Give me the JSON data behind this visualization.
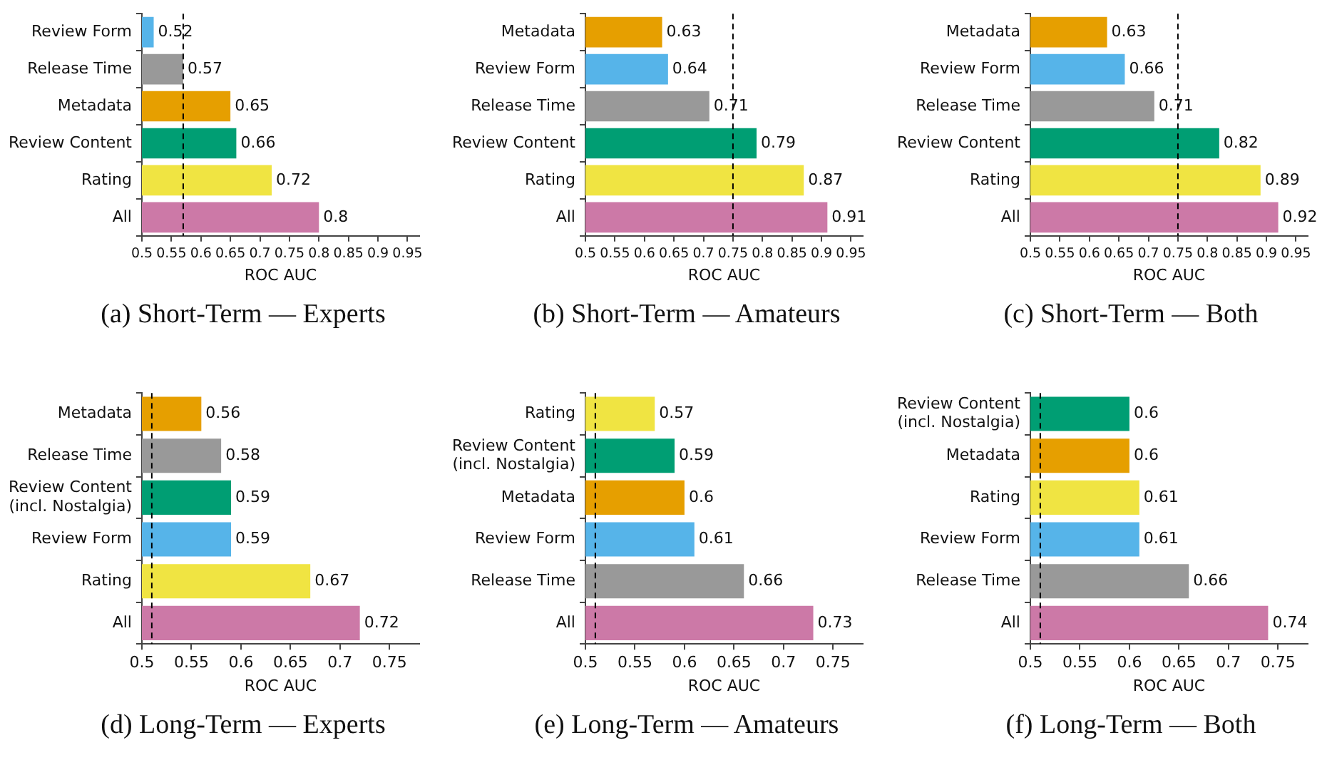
{
  "chart_data": [
    {
      "type": "bar",
      "orientation": "horizontal",
      "title": "(a) Short-Term — Experts",
      "xlabel": "ROC AUC",
      "categories": [
        "Review Form",
        "Release Time",
        "Metadata",
        "Review Content",
        "Rating",
        "All"
      ],
      "values": [
        0.52,
        0.57,
        0.65,
        0.66,
        0.72,
        0.8
      ],
      "colors": [
        "#56b4e9",
        "#999999",
        "#e69f00",
        "#009e73",
        "#f0e442",
        "#cc79a7"
      ],
      "xlim": [
        0.5,
        0.97
      ],
      "xticks": [
        0.5,
        0.55,
        0.6,
        0.65,
        0.7,
        0.75,
        0.8,
        0.85,
        0.9,
        0.95
      ],
      "data_labels": true,
      "grid": false,
      "legend": false,
      "ref_lines": [
        {
          "axis": "x",
          "value": 0.57,
          "color": "#000000",
          "line_style": "dashed"
        }
      ]
    },
    {
      "type": "bar",
      "orientation": "horizontal",
      "title": "(b) Short-Term — Amateurs",
      "xlabel": "ROC AUC",
      "categories": [
        "Metadata",
        "Review Form",
        "Release Time",
        "Review Content",
        "Rating",
        "All"
      ],
      "values": [
        0.63,
        0.64,
        0.71,
        0.79,
        0.87,
        0.91
      ],
      "colors": [
        "#e69f00",
        "#56b4e9",
        "#999999",
        "#009e73",
        "#f0e442",
        "#cc79a7"
      ],
      "xlim": [
        0.5,
        0.97
      ],
      "xticks": [
        0.5,
        0.55,
        0.6,
        0.65,
        0.7,
        0.75,
        0.8,
        0.85,
        0.9,
        0.95
      ],
      "data_labels": true,
      "grid": false,
      "legend": false,
      "ref_lines": [
        {
          "axis": "x",
          "value": 0.75,
          "color": "#000000",
          "line_style": "dashed"
        }
      ]
    },
    {
      "type": "bar",
      "orientation": "horizontal",
      "title": "(c) Short-Term — Both",
      "xlabel": "ROC AUC",
      "categories": [
        "Metadata",
        "Review Form",
        "Release Time",
        "Review Content",
        "Rating",
        "All"
      ],
      "values": [
        0.63,
        0.66,
        0.71,
        0.82,
        0.89,
        0.92
      ],
      "colors": [
        "#e69f00",
        "#56b4e9",
        "#999999",
        "#009e73",
        "#f0e442",
        "#cc79a7"
      ],
      "xlim": [
        0.5,
        0.97
      ],
      "xticks": [
        0.5,
        0.55,
        0.6,
        0.65,
        0.7,
        0.75,
        0.8,
        0.85,
        0.9,
        0.95
      ],
      "data_labels": true,
      "grid": false,
      "legend": false,
      "ref_lines": [
        {
          "axis": "x",
          "value": 0.75,
          "color": "#000000",
          "line_style": "dashed"
        }
      ]
    },
    {
      "type": "bar",
      "orientation": "horizontal",
      "title": "(d) Long-Term — Experts",
      "xlabel": "ROC AUC",
      "categories": [
        "Metadata",
        "Release Time",
        "Review Content\n(incl. Nostalgia)",
        "Review Form",
        "Rating",
        "All"
      ],
      "values": [
        0.56,
        0.58,
        0.59,
        0.59,
        0.67,
        0.72
      ],
      "colors": [
        "#e69f00",
        "#999999",
        "#009e73",
        "#56b4e9",
        "#f0e442",
        "#cc79a7"
      ],
      "xlim": [
        0.5,
        0.78
      ],
      "xticks": [
        0.5,
        0.55,
        0.6,
        0.65,
        0.7,
        0.75
      ],
      "data_labels": true,
      "grid": false,
      "legend": false,
      "ref_lines": [
        {
          "axis": "x",
          "value": 0.51,
          "color": "#000000",
          "line_style": "dashed"
        }
      ]
    },
    {
      "type": "bar",
      "orientation": "horizontal",
      "title": "(e) Long-Term — Amateurs",
      "xlabel": "ROC AUC",
      "categories": [
        "Rating",
        "Review Content\n(incl. Nostalgia)",
        "Metadata",
        "Review Form",
        "Release Time",
        "All"
      ],
      "values": [
        0.57,
        0.59,
        0.6,
        0.61,
        0.66,
        0.73
      ],
      "colors": [
        "#f0e442",
        "#009e73",
        "#e69f00",
        "#56b4e9",
        "#999999",
        "#cc79a7"
      ],
      "xlim": [
        0.5,
        0.78
      ],
      "xticks": [
        0.5,
        0.55,
        0.6,
        0.65,
        0.7,
        0.75
      ],
      "data_labels": true,
      "grid": false,
      "legend": false,
      "ref_lines": [
        {
          "axis": "x",
          "value": 0.51,
          "color": "#000000",
          "line_style": "dashed"
        }
      ]
    },
    {
      "type": "bar",
      "orientation": "horizontal",
      "title": "(f) Long-Term — Both",
      "xlabel": "ROC AUC",
      "categories": [
        "Review Content\n(incl. Nostalgia)",
        "Metadata",
        "Rating",
        "Review Form",
        "Release Time",
        "All"
      ],
      "values": [
        0.6,
        0.6,
        0.61,
        0.61,
        0.66,
        0.74
      ],
      "colors": [
        "#009e73",
        "#e69f00",
        "#f0e442",
        "#56b4e9",
        "#999999",
        "#cc79a7"
      ],
      "xlim": [
        0.5,
        0.78
      ],
      "xticks": [
        0.5,
        0.55,
        0.6,
        0.65,
        0.7,
        0.75
      ],
      "data_labels": true,
      "grid": false,
      "legend": false,
      "ref_lines": [
        {
          "axis": "x",
          "value": 0.51,
          "color": "#000000",
          "line_style": "dashed"
        }
      ]
    }
  ]
}
